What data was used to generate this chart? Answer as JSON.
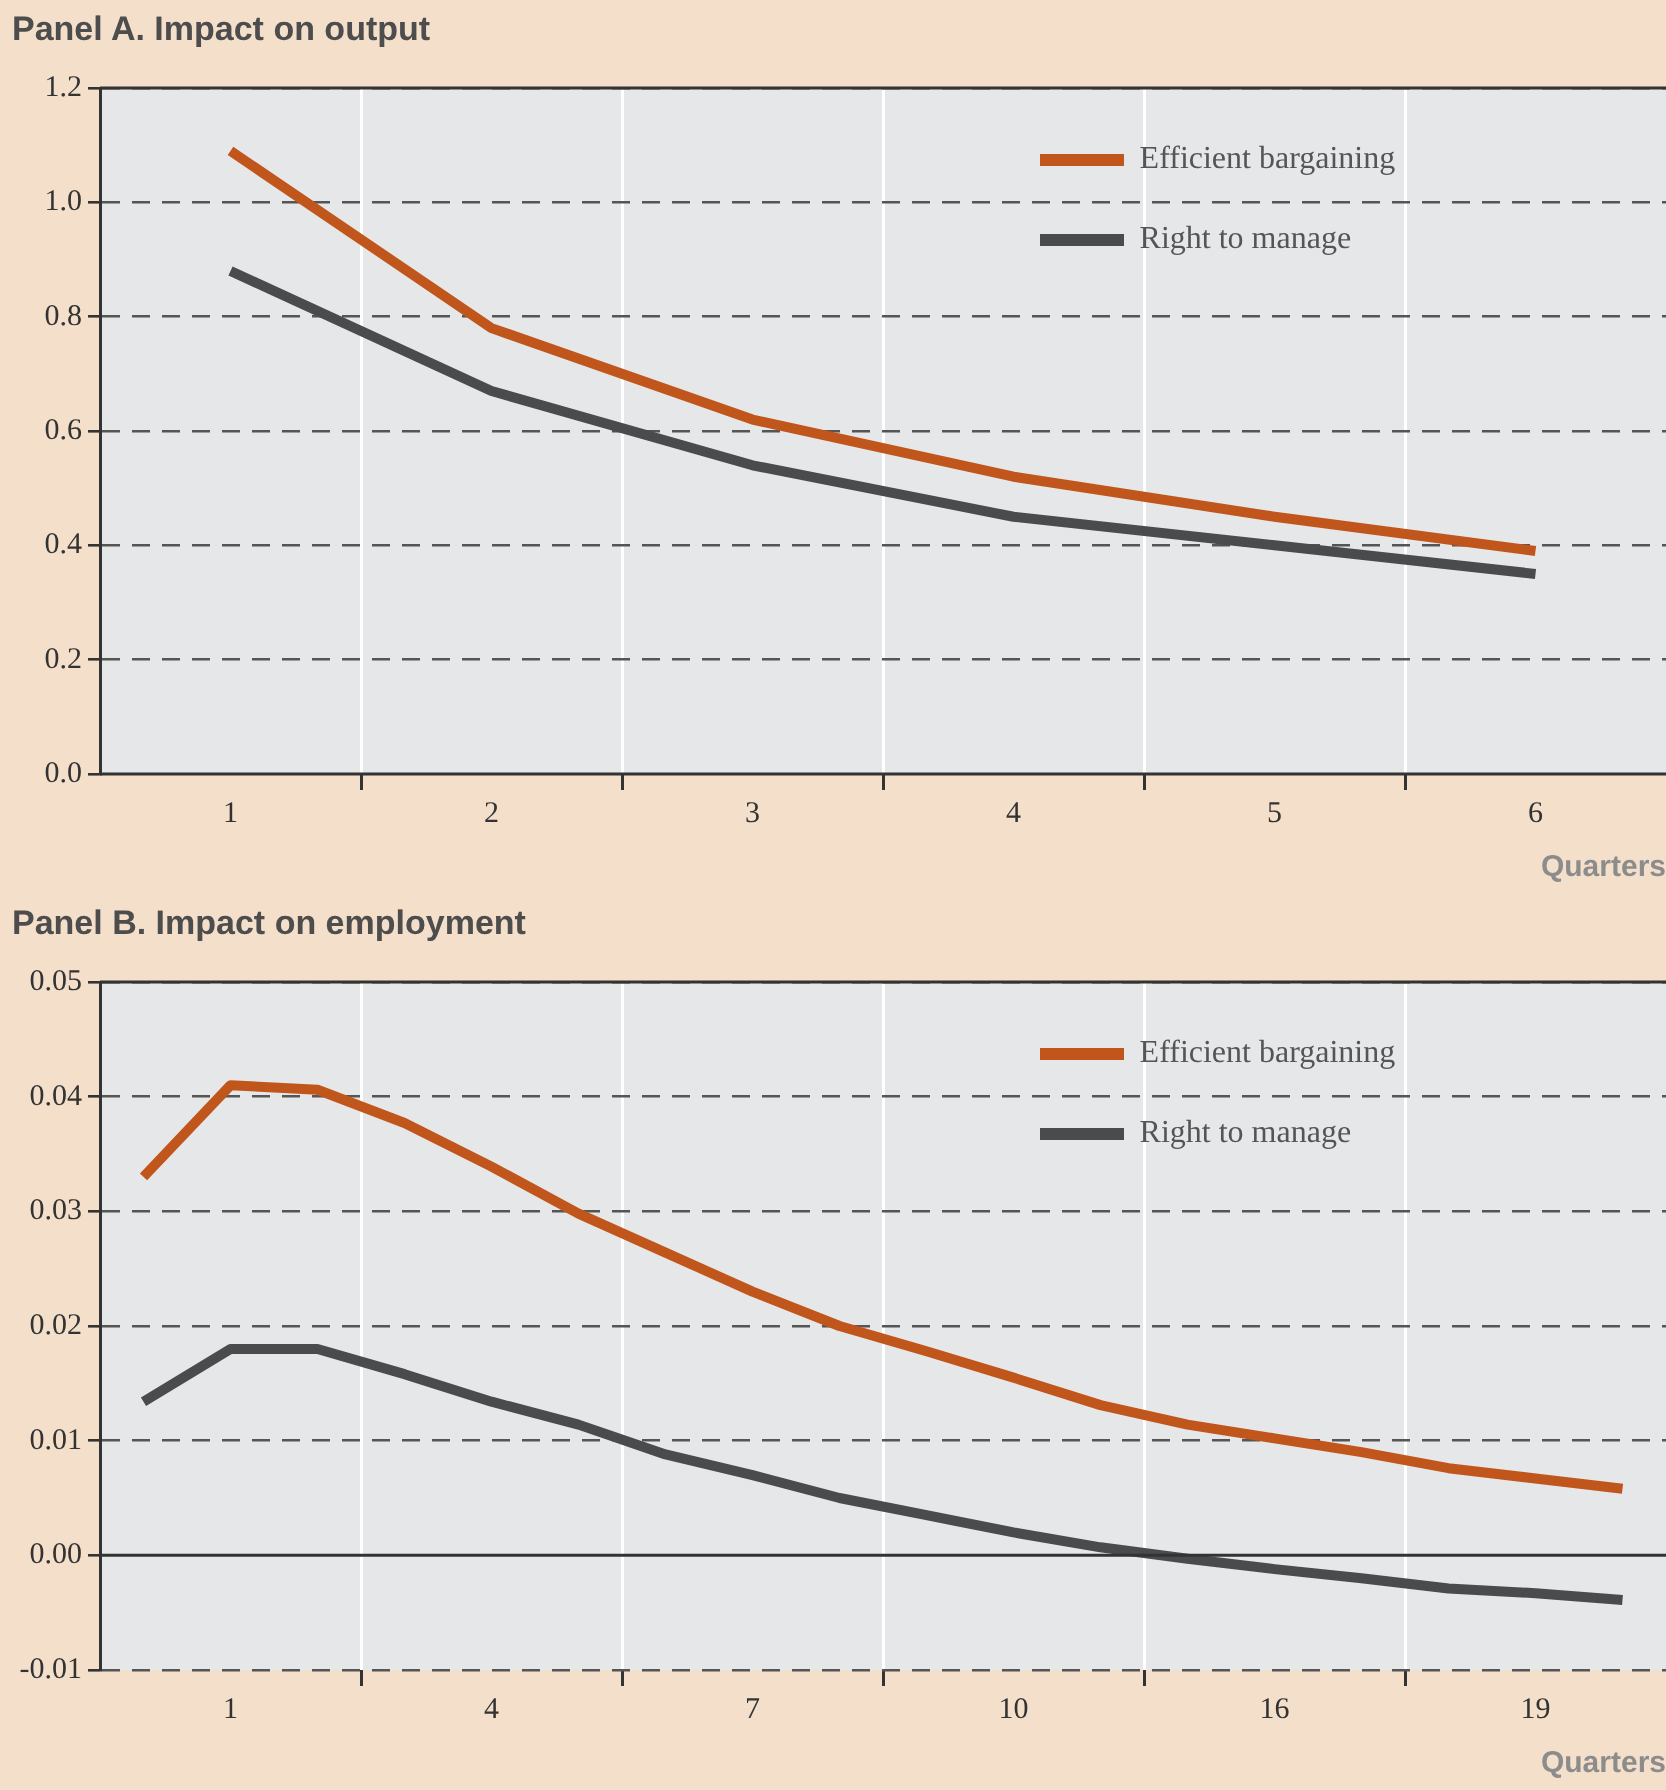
{
  "chart_data": [
    {
      "type": "line",
      "title": "Panel A. Impact on output",
      "xlabel": "Quarters",
      "categories": [
        "1",
        "2",
        "3",
        "4",
        "5",
        "6"
      ],
      "series": [
        {
          "name": "Efficient bargaining",
          "color": "#c0561b",
          "values": [
            1.09,
            0.78,
            0.62,
            0.52,
            0.45,
            0.39
          ]
        },
        {
          "name": "Right to manage",
          "color": "#4a4b4d",
          "values": [
            0.88,
            0.67,
            0.54,
            0.45,
            0.4,
            0.35
          ]
        }
      ],
      "ylim": [
        0,
        1.2
      ],
      "yticks": [
        {
          "value": 0,
          "label": "0.0"
        },
        {
          "value": 0.2,
          "label": "0.2"
        },
        {
          "value": 0.4,
          "label": "0.4"
        },
        {
          "value": 0.6,
          "label": "0.6"
        },
        {
          "value": 0.8,
          "label": "0.8"
        },
        {
          "value": 1,
          "label": "1.0"
        },
        {
          "value": 1.2,
          "label": "1.2"
        }
      ],
      "grid": true,
      "legend": "top right",
      "marker": "none",
      "line_style": "solid"
    },
    {
      "type": "line",
      "title": "Panel B. Impact on employment",
      "xlabel": "Quarters",
      "categories": [
        null,
        "1",
        null,
        null,
        "4",
        null,
        null,
        "7",
        null,
        null,
        "10",
        null,
        null,
        "16",
        null,
        null,
        "19",
        null
      ],
      "series": [
        {
          "name": "Efficient bargaining",
          "color": "#c0561b",
          "values": [
            0.033,
            0.041,
            0.0406,
            0.0377,
            0.0339,
            0.0298,
            0.0264,
            0.023,
            0.02,
            0.0178,
            0.0155,
            0.0131,
            0.0114,
            0.0102,
            0.009,
            0.0076,
            0.0067,
            0.0058
          ]
        },
        {
          "name": "Right to manage",
          "color": "#4a4b4d",
          "values": [
            0.0134,
            0.018,
            0.018,
            0.0158,
            0.0134,
            0.0114,
            0.0088,
            0.007,
            0.005,
            0.0035,
            0.002,
            0.0007,
            -0.0003,
            -0.0012,
            -0.002,
            -0.0029,
            -0.0033,
            -0.0039
          ]
        }
      ],
      "ylim": [
        -0.01,
        0.05
      ],
      "yticks": [
        {
          "value": -0.01,
          "label": "-0.01"
        },
        {
          "value": 0,
          "label": "0.00"
        },
        {
          "value": 0.01,
          "label": "0.01"
        },
        {
          "value": 0.02,
          "label": "0.02"
        },
        {
          "value": 0.03,
          "label": "0.03"
        },
        {
          "value": 0.04,
          "label": "0.04"
        },
        {
          "value": 0.05,
          "label": "0.05"
        }
      ],
      "grid": true,
      "legend": "top right",
      "marker": "none",
      "line_style": "solid"
    }
  ]
}
